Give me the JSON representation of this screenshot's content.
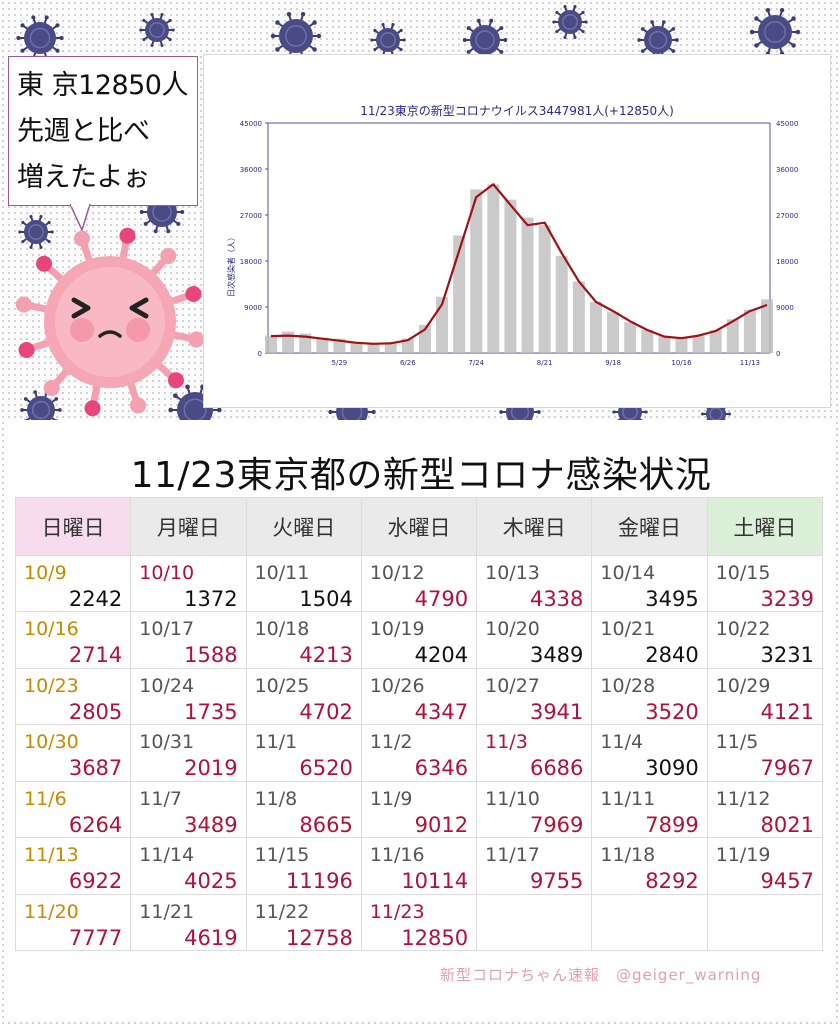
{
  "speech_bubble": {
    "lines": [
      "東 京12850人",
      "先週と比べ",
      "増えたよぉ"
    ]
  },
  "chart_data": {
    "type": "bar",
    "title": "11/23東京の新型コロナウイルス3447981人(+12850人)",
    "ylabel": "日次感染者（人）",
    "ylim": [
      0,
      45000
    ],
    "yticks": [
      0,
      9000,
      18000,
      27000,
      36000,
      45000
    ],
    "xticks": [
      "5/29",
      "6/26",
      "7/24",
      "8/21",
      "9/18",
      "10/16",
      "11/13"
    ],
    "grid": false,
    "series": [
      {
        "kind": "bar",
        "x": [
          "5/1",
          "5/8",
          "5/15",
          "5/22",
          "5/29",
          "6/5",
          "6/12",
          "6/19",
          "6/26",
          "7/3",
          "7/10",
          "7/17",
          "7/24",
          "7/31",
          "8/7",
          "8/14",
          "8/21",
          "8/28",
          "9/4",
          "9/11",
          "9/18",
          "9/25",
          "10/2",
          "10/9",
          "10/16",
          "10/23",
          "10/30",
          "11/6",
          "11/13",
          "11/20"
        ],
        "values": [
          3400,
          4200,
          3800,
          3000,
          2800,
          2200,
          1900,
          2100,
          2800,
          5500,
          11000,
          23000,
          32000,
          33000,
          30000,
          26500,
          25000,
          19000,
          14000,
          10000,
          8000,
          6000,
          4500,
          3300,
          3000,
          3400,
          4500,
          6600,
          8500,
          10500
        ]
      },
      {
        "kind": "line",
        "x": [
          "5/1",
          "5/8",
          "5/15",
          "5/22",
          "5/29",
          "6/5",
          "6/12",
          "6/19",
          "6/26",
          "7/3",
          "7/10",
          "7/17",
          "7/24",
          "7/31",
          "8/7",
          "8/14",
          "8/21",
          "8/28",
          "9/4",
          "9/11",
          "9/18",
          "9/25",
          "10/2",
          "10/9",
          "10/16",
          "10/23",
          "10/30",
          "11/6",
          "11/13",
          "11/20"
        ],
        "values": [
          3300,
          3400,
          3200,
          2800,
          2400,
          2000,
          1800,
          1900,
          2500,
          4600,
          9500,
          20000,
          30500,
          33000,
          29000,
          25000,
          25500,
          19500,
          14000,
          10000,
          8200,
          6200,
          4500,
          3200,
          2900,
          3400,
          4300,
          6200,
          8200,
          9400
        ]
      }
    ],
    "colors": {
      "bars": "#bdbdbd",
      "line": "#a01016",
      "title": "#2a2a8a",
      "axis": "#2a2a8a"
    }
  },
  "page_title": "11/23東京都の新型コロナ感染状況",
  "table": {
    "headers": [
      "日曜日",
      "月曜日",
      "火曜日",
      "水曜日",
      "木曜日",
      "金曜日",
      "土曜日"
    ],
    "rows": [
      [
        {
          "date": "10/9",
          "value": "2242",
          "dc": "orange",
          "vc": ""
        },
        {
          "date": "10/10",
          "value": "1372",
          "dc": "red",
          "vc": ""
        },
        {
          "date": "10/11",
          "value": "1504",
          "dc": "",
          "vc": ""
        },
        {
          "date": "10/12",
          "value": "4790",
          "dc": "",
          "vc": "red"
        },
        {
          "date": "10/13",
          "value": "4338",
          "dc": "",
          "vc": "red"
        },
        {
          "date": "10/14",
          "value": "3495",
          "dc": "",
          "vc": ""
        },
        {
          "date": "10/15",
          "value": "3239",
          "dc": "",
          "vc": "red"
        }
      ],
      [
        {
          "date": "10/16",
          "value": "2714",
          "dc": "orange",
          "vc": "red"
        },
        {
          "date": "10/17",
          "value": "1588",
          "dc": "",
          "vc": "red"
        },
        {
          "date": "10/18",
          "value": "4213",
          "dc": "",
          "vc": "red"
        },
        {
          "date": "10/19",
          "value": "4204",
          "dc": "",
          "vc": ""
        },
        {
          "date": "10/20",
          "value": "3489",
          "dc": "",
          "vc": ""
        },
        {
          "date": "10/21",
          "value": "2840",
          "dc": "",
          "vc": ""
        },
        {
          "date": "10/22",
          "value": "3231",
          "dc": "",
          "vc": ""
        }
      ],
      [
        {
          "date": "10/23",
          "value": "2805",
          "dc": "orange",
          "vc": "red"
        },
        {
          "date": "10/24",
          "value": "1735",
          "dc": "",
          "vc": "red"
        },
        {
          "date": "10/25",
          "value": "4702",
          "dc": "",
          "vc": "red"
        },
        {
          "date": "10/26",
          "value": "4347",
          "dc": "",
          "vc": "red"
        },
        {
          "date": "10/27",
          "value": "3941",
          "dc": "",
          "vc": "red"
        },
        {
          "date": "10/28",
          "value": "3520",
          "dc": "",
          "vc": "red"
        },
        {
          "date": "10/29",
          "value": "4121",
          "dc": "",
          "vc": "red"
        }
      ],
      [
        {
          "date": "10/30",
          "value": "3687",
          "dc": "orange",
          "vc": "red"
        },
        {
          "date": "10/31",
          "value": "2019",
          "dc": "",
          "vc": "red"
        },
        {
          "date": "11/1",
          "value": "6520",
          "dc": "",
          "vc": "red"
        },
        {
          "date": "11/2",
          "value": "6346",
          "dc": "",
          "vc": "red"
        },
        {
          "date": "11/3",
          "value": "6686",
          "dc": "red",
          "vc": "red"
        },
        {
          "date": "11/4",
          "value": "3090",
          "dc": "",
          "vc": ""
        },
        {
          "date": "11/5",
          "value": "7967",
          "dc": "",
          "vc": "red"
        }
      ],
      [
        {
          "date": "11/6",
          "value": "6264",
          "dc": "orange",
          "vc": "red"
        },
        {
          "date": "11/7",
          "value": "3489",
          "dc": "",
          "vc": "red"
        },
        {
          "date": "11/8",
          "value": "8665",
          "dc": "",
          "vc": "red"
        },
        {
          "date": "11/9",
          "value": "9012",
          "dc": "",
          "vc": "red"
        },
        {
          "date": "11/10",
          "value": "7969",
          "dc": "",
          "vc": "red"
        },
        {
          "date": "11/11",
          "value": "7899",
          "dc": "",
          "vc": "red"
        },
        {
          "date": "11/12",
          "value": "8021",
          "dc": "",
          "vc": "red"
        }
      ],
      [
        {
          "date": "11/13",
          "value": "6922",
          "dc": "orange",
          "vc": "red"
        },
        {
          "date": "11/14",
          "value": "4025",
          "dc": "",
          "vc": "red"
        },
        {
          "date": "11/15",
          "value": "11196",
          "dc": "",
          "vc": "red"
        },
        {
          "date": "11/16",
          "value": "10114",
          "dc": "",
          "vc": "red"
        },
        {
          "date": "11/17",
          "value": "9755",
          "dc": "",
          "vc": "red"
        },
        {
          "date": "11/18",
          "value": "8292",
          "dc": "",
          "vc": "red"
        },
        {
          "date": "11/19",
          "value": "9457",
          "dc": "",
          "vc": "red"
        }
      ],
      [
        {
          "date": "11/20",
          "value": "7777",
          "dc": "orange",
          "vc": "red"
        },
        {
          "date": "11/21",
          "value": "4619",
          "dc": "",
          "vc": "red"
        },
        {
          "date": "11/22",
          "value": "12758",
          "dc": "",
          "vc": "red"
        },
        {
          "date": "11/23",
          "value": "12850",
          "dc": "red",
          "vc": "red"
        },
        {
          "date": "",
          "value": "",
          "dc": "",
          "vc": ""
        },
        {
          "date": "",
          "value": "",
          "dc": "",
          "vc": ""
        },
        {
          "date": "",
          "value": "",
          "dc": "",
          "vc": ""
        }
      ]
    ]
  },
  "credit": "新型コロナちゃん速報　@geiger_warning",
  "icons": [
    "virus-icon",
    "virus-character-icon"
  ],
  "colors": {
    "accent_red": "#b0103a",
    "sunday_orange": "#c58a00",
    "virus_navy": "#3c3d72",
    "virus_pink": "#f3a1b1"
  }
}
